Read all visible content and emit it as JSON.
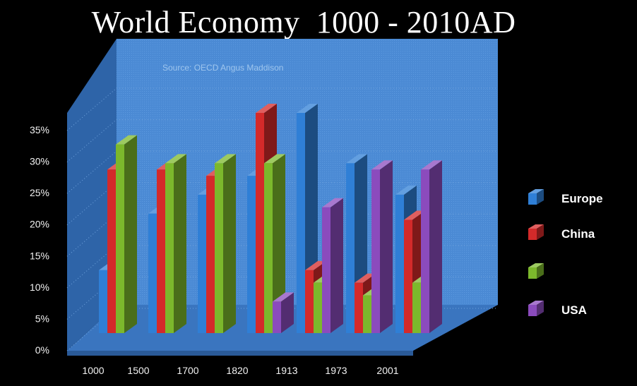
{
  "chart_data": {
    "type": "bar",
    "title": "World Economy  1000 - 2010AD",
    "source": "Source: OECD Angus Maddison",
    "categories": [
      "1000",
      "1500",
      "1700",
      "1820",
      "1913",
      "1973",
      "2001"
    ],
    "y_ticks": [
      "0%",
      "5%",
      "10%",
      "15%",
      "20%",
      "25%",
      "30%",
      "35%"
    ],
    "ylim": [
      0,
      35
    ],
    "series": [
      {
        "name": "Europe",
        "color": "#2f7fd6",
        "values": [
          10,
          19,
          22,
          25,
          35,
          27,
          22
        ]
      },
      {
        "name": "China",
        "color": "#d42a2a",
        "values": [
          26,
          26,
          25,
          35,
          10,
          8,
          18
        ]
      },
      {
        "name": "",
        "color": "#7cb82c",
        "values": [
          30,
          27,
          27,
          27,
          8,
          6,
          8
        ]
      },
      {
        "name": "USA",
        "color": "#8b4bbd",
        "values": [
          0,
          0,
          0,
          5,
          20,
          26,
          26
        ]
      }
    ],
    "legend_position": "right",
    "background": "#3f80cc"
  }
}
